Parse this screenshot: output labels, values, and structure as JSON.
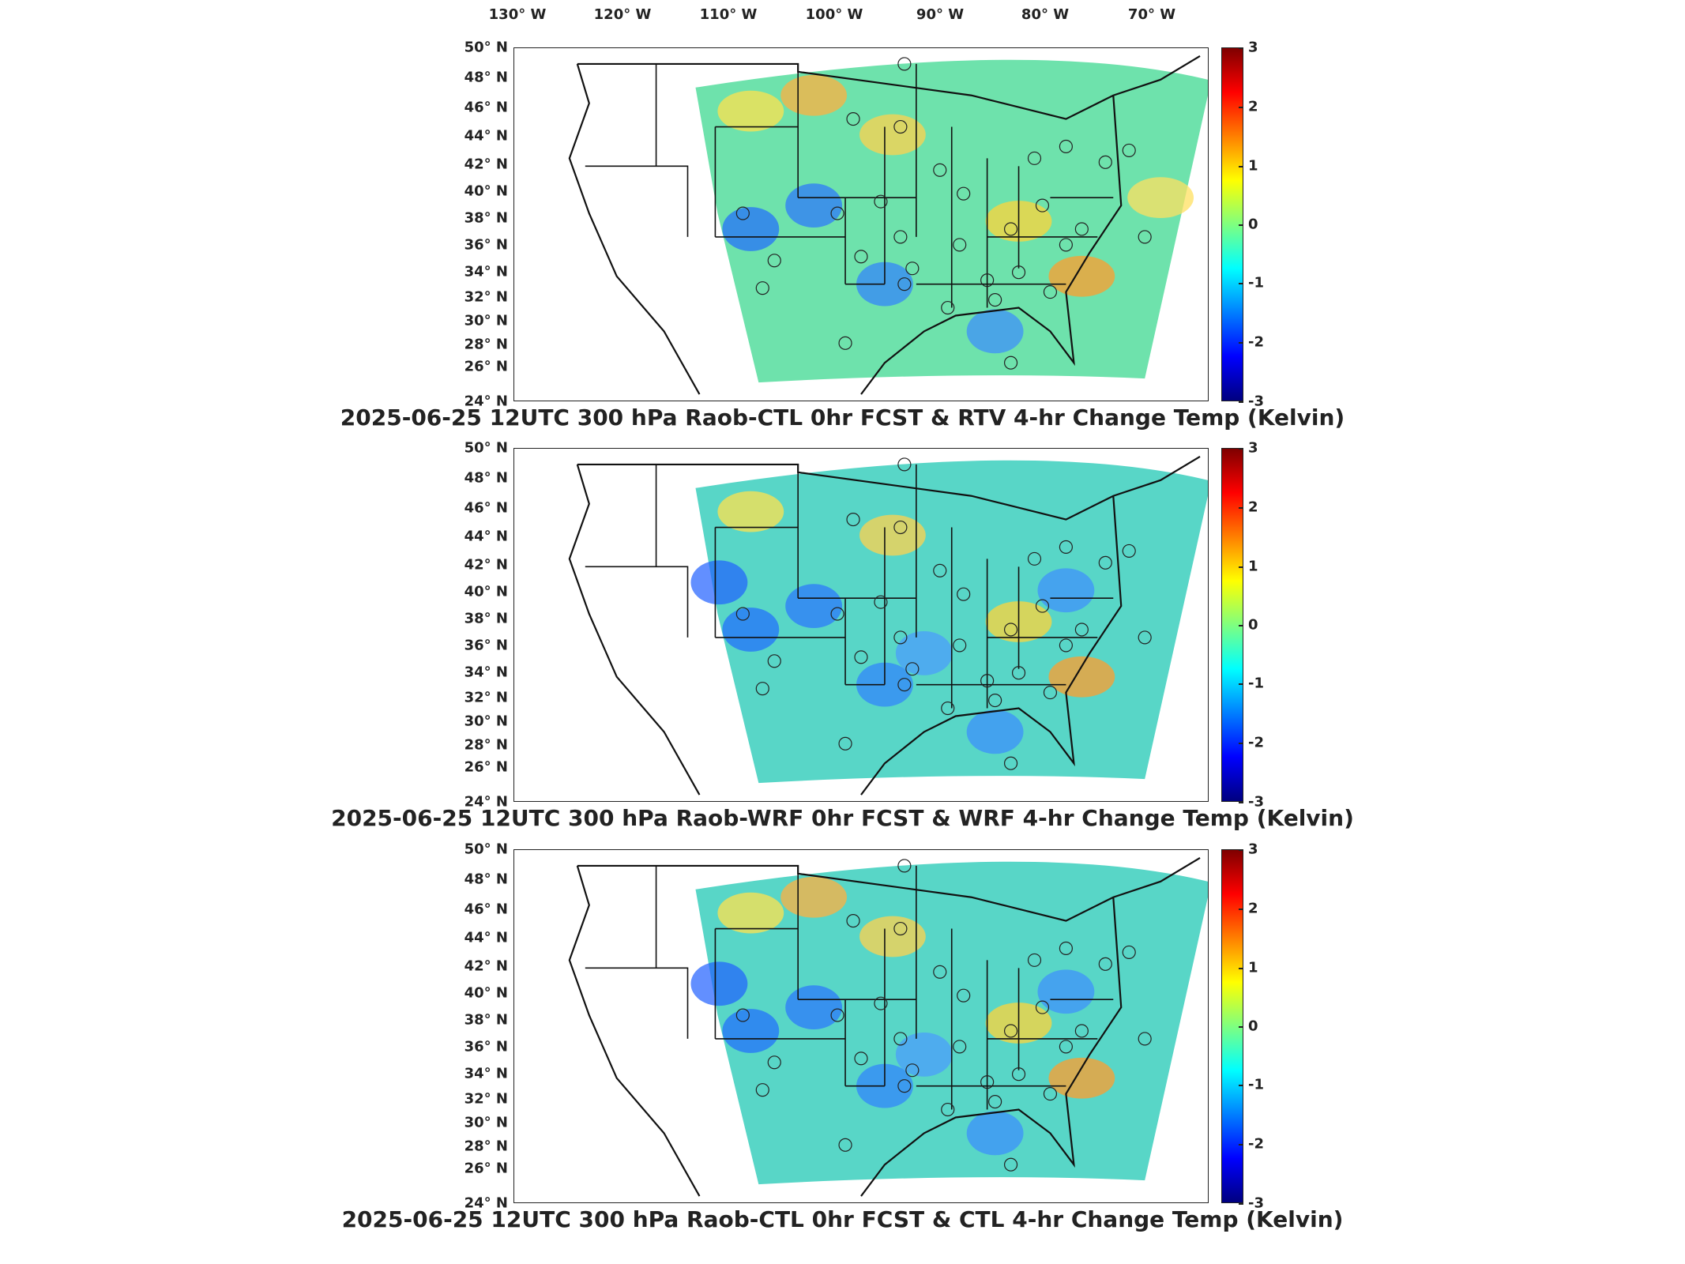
{
  "longitude_labels": [
    "130° W",
    "120° W",
    "110° W",
    "100° W",
    "90° W",
    "80° W",
    "70° W"
  ],
  "latitude_labels": [
    "50° N",
    "48° N",
    "46° N",
    "44° N",
    "42° N",
    "40° N",
    "38° N",
    "36° N",
    "34° N",
    "32° N",
    "30° N",
    "28° N",
    "26° N",
    "24° N"
  ],
  "colorbar": {
    "ticks": [
      "3",
      "2",
      "1",
      "0",
      "-1",
      "-2",
      "-3"
    ],
    "range": [
      -3,
      3
    ],
    "colormap": "jet",
    "colors": [
      "#00007f",
      "#0000ff",
      "#007fff",
      "#00ffff",
      "#7fff7f",
      "#ffff00",
      "#ff7f00",
      "#ff0000",
      "#7f0000"
    ]
  },
  "panels": [
    {
      "title": "2025-06-25 12UTC 300 hPa Raob-CTL 0hr FCST & RTV 4-hr Change Temp (Kelvin)",
      "field_tint": "#66e0a8",
      "warm_spots": 6,
      "cool_spots": 4
    },
    {
      "title": "2025-06-25 12UTC 300 hPa Raob-WRF 0hr FCST & WRF 4-hr Change Temp (Kelvin)",
      "field_tint": "#4fd4c4",
      "warm_spots": 4,
      "cool_spots": 7
    },
    {
      "title": "2025-06-25 12UTC 300 hPa Raob-CTL 0hr FCST & CTL 4-hr Change Temp (Kelvin)",
      "field_tint": "#4fd4c4",
      "warm_spots": 5,
      "cool_spots": 7
    }
  ]
}
